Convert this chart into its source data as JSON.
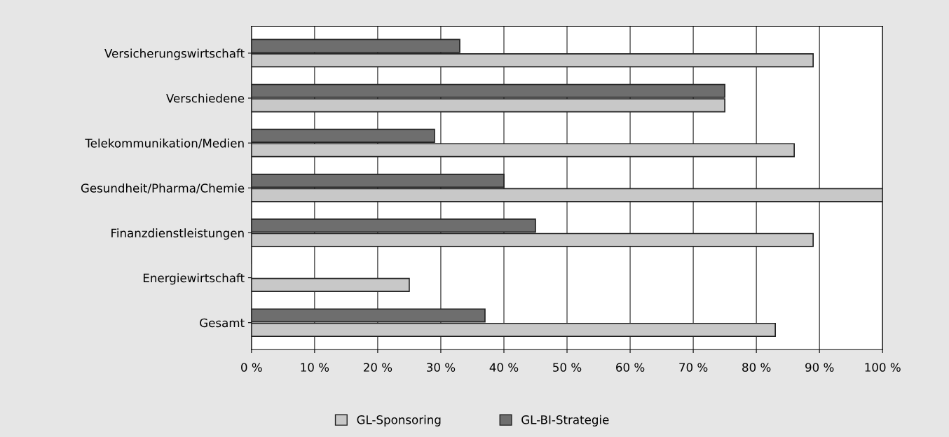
{
  "chart_data": {
    "type": "bar",
    "orientation": "horizontal",
    "categories": [
      "Versicherungswirtschaft",
      "Verschiedene",
      "Telekommunikation/Medien",
      "Gesundheit/Pharma/Chemie",
      "Finanzdienstleistungen",
      "Energiewirtschaft",
      "Gesamt"
    ],
    "series": [
      {
        "name": "GL-Sponsoring",
        "color": "#c8c8c8",
        "values": [
          89,
          75,
          86,
          100,
          89,
          25,
          83
        ]
      },
      {
        "name": "GL-BI-Strategie",
        "color": "#6e6e6e",
        "values": [
          33,
          75,
          29,
          40,
          45,
          0,
          37
        ]
      }
    ],
    "xlim": [
      0,
      100
    ],
    "xticks": [
      {
        "value": 0,
        "label": "0 %"
      },
      {
        "value": 10,
        "label": "10 %"
      },
      {
        "value": 20,
        "label": "20 %"
      },
      {
        "value": 30,
        "label": "30 %"
      },
      {
        "value": 40,
        "label": "40 %"
      },
      {
        "value": 50,
        "label": "50 %"
      },
      {
        "value": 60,
        "label": "60 %"
      },
      {
        "value": 70,
        "label": "70 %"
      },
      {
        "value": 80,
        "label": "80 %"
      },
      {
        "value": 90,
        "label": "90 %"
      },
      {
        "value": 100,
        "label": "100 %"
      }
    ],
    "grid": "x",
    "legend": "bottom"
  }
}
